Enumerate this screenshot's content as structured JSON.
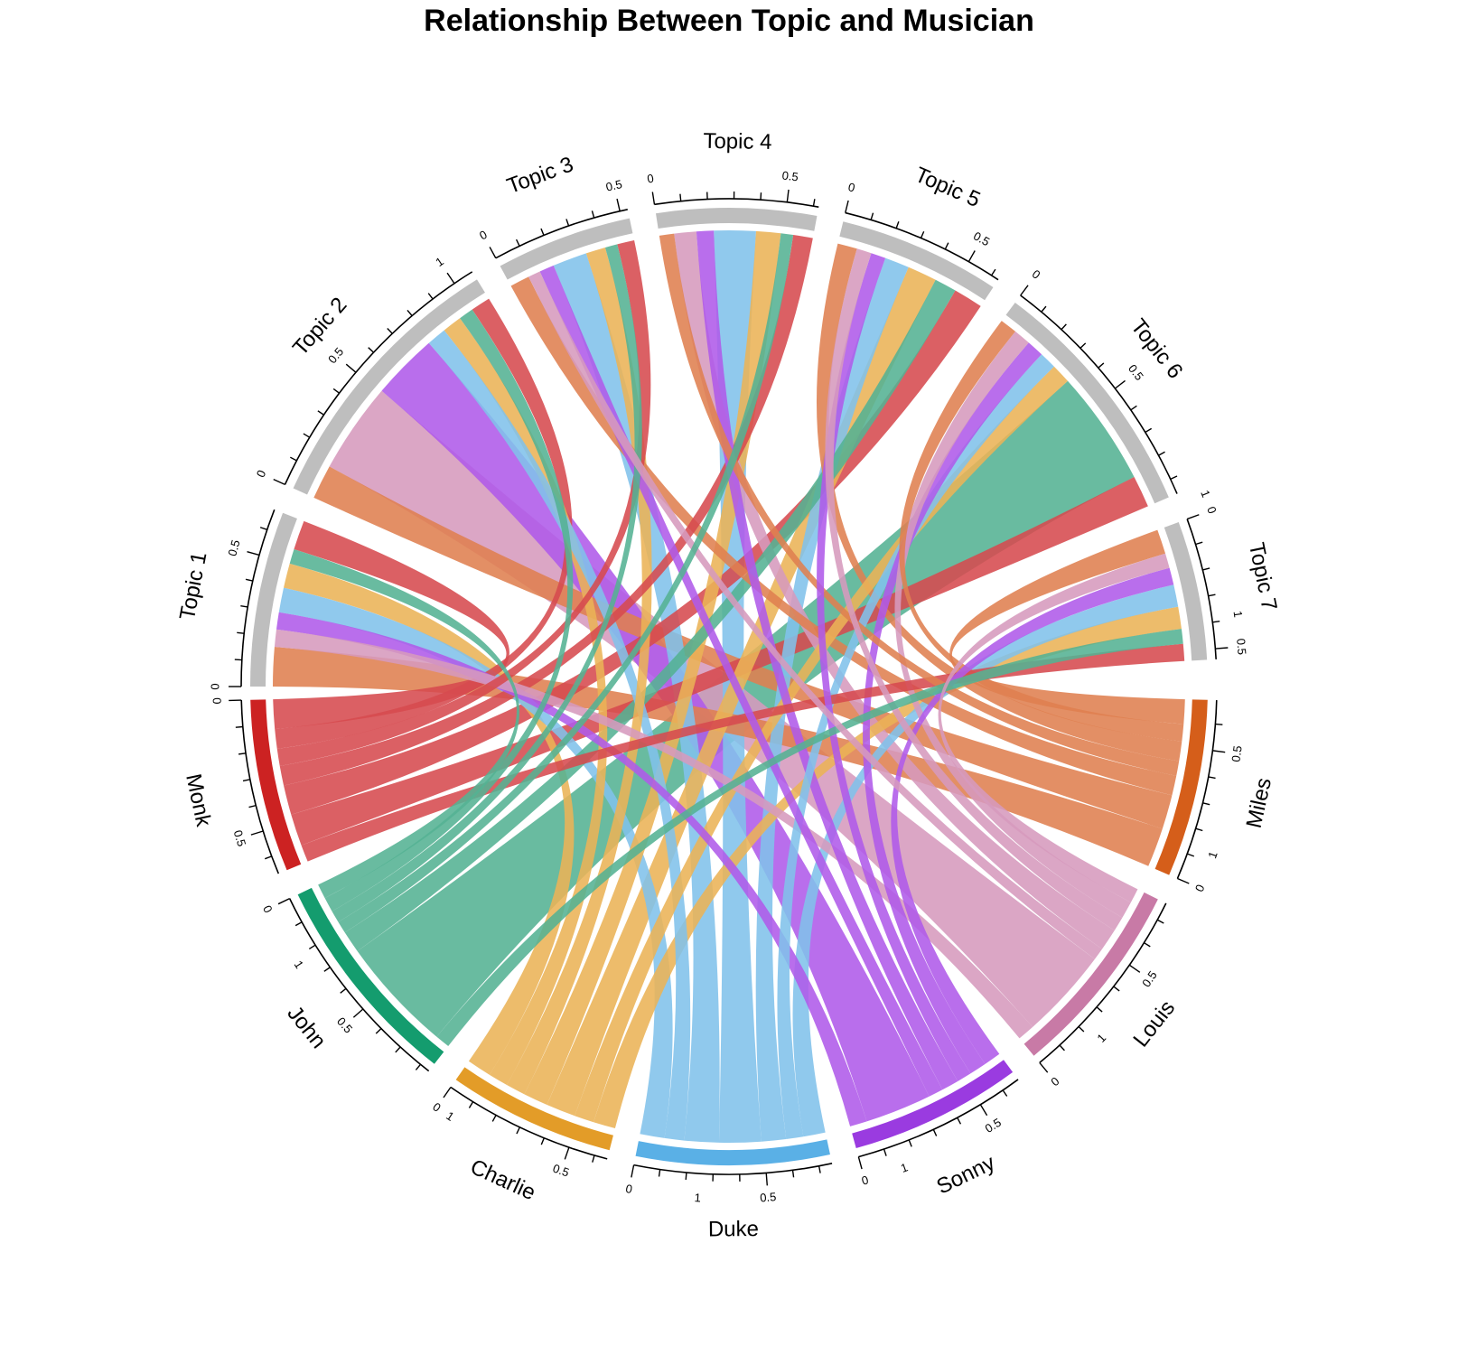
{
  "chart_data": {
    "type": "chord",
    "title": "Relationship Between Topic and Musician",
    "topics": [
      "Topic 1",
      "Topic 2",
      "Topic 3",
      "Topic 4",
      "Topic 5",
      "Topic 6",
      "Topic 7"
    ],
    "musicians": [
      "Monk",
      "John",
      "Charlie",
      "Duke",
      "Sonny",
      "Louis",
      "Miles"
    ],
    "topic_color": "#bebebe",
    "musician_colors": {
      "Monk": "#cc2222",
      "John": "#149c6e",
      "Charlie": "#e39c28",
      "Duke": "#5ab0e6",
      "Sonny": "#9a3be0",
      "Louis": "#c87aa6",
      "Miles": "#d55e1a"
    },
    "link_colors": {
      "Monk": "#d64a4f",
      "John": "#54b293",
      "Charlie": "#ebb357",
      "Duke": "#81c1ea",
      "Sonny": "#af5ae9",
      "Louis": "#d69abd",
      "Miles": "#df8050"
    },
    "matrix_comment": "rows = topics, columns = musicians (Monk, John, Charlie, Duke, Sonny, Louis, Miles)",
    "matrix": [
      [
        0.12,
        0.06,
        0.1,
        0.1,
        0.07,
        0.07,
        0.16
      ],
      [
        0.08,
        0.06,
        0.08,
        0.08,
        0.27,
        0.37,
        0.14
      ],
      [
        0.07,
        0.05,
        0.08,
        0.14,
        0.06,
        0.05,
        0.08
      ],
      [
        0.08,
        0.05,
        0.1,
        0.17,
        0.07,
        0.09,
        0.06
      ],
      [
        0.12,
        0.09,
        0.12,
        0.1,
        0.06,
        0.06,
        0.08
      ],
      [
        0.13,
        0.47,
        0.08,
        0.07,
        0.07,
        0.07,
        0.07
      ],
      [
        0.07,
        0.06,
        0.09,
        0.09,
        0.07,
        0.06,
        0.1
      ]
    ],
    "topic_axis_ticks": {
      "Topic 1": [
        "0",
        "0.5"
      ],
      "Topic 2": [
        "0",
        "0.5",
        "1"
      ],
      "Topic 3": [
        "0",
        "0.5"
      ],
      "Topic 4": [
        "0",
        "0.5"
      ],
      "Topic 5": [
        "0",
        "0.5"
      ],
      "Topic 6": [
        "0",
        "0.5",
        "1"
      ],
      "Topic 7": [
        "0",
        "0.5"
      ]
    },
    "musician_axis_ticks": {
      "Monk": [
        "0",
        "0.5",
        "1"
      ],
      "John": [
        "0",
        "0.5",
        "1"
      ],
      "Charlie": [
        "0",
        "0.5",
        "1"
      ],
      "Duke": [
        "0",
        "0.5",
        "1"
      ],
      "Sonny": [
        "0",
        "0.5",
        "1"
      ],
      "Louis": [
        "0",
        "0.5",
        "1"
      ],
      "Miles": [
        "0",
        "0.5",
        "1"
      ]
    }
  }
}
